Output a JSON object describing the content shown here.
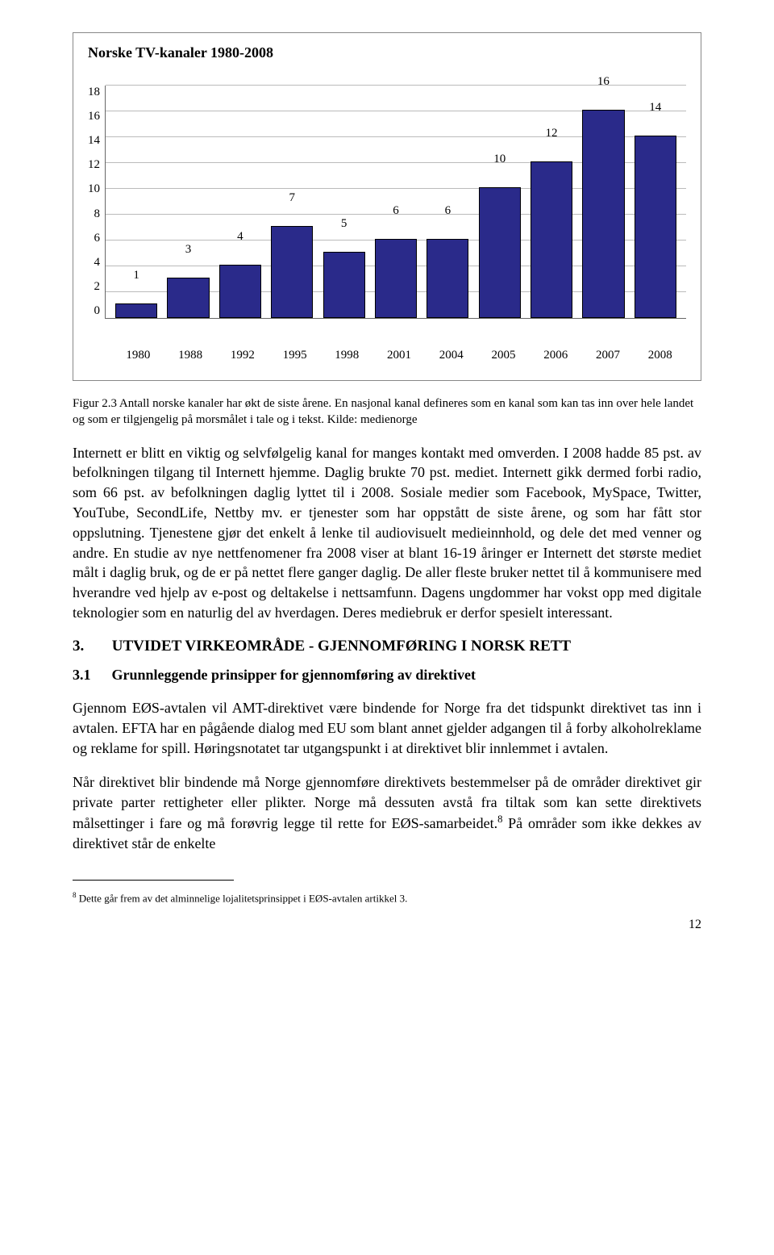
{
  "chart": {
    "type": "bar",
    "title": "Norske TV-kanaler 1980-2008",
    "categories": [
      "1980",
      "1988",
      "1992",
      "1995",
      "1998",
      "2001",
      "2004",
      "2005",
      "2006",
      "2007",
      "2008"
    ],
    "values": [
      1,
      3,
      4,
      7,
      5,
      6,
      6,
      10,
      12,
      16,
      14
    ],
    "bar_color": "#2a2a8a",
    "bar_border_color": "#000000",
    "ylim_max": 18,
    "ytick_step": 2,
    "gridline_color": "#bbbbbb",
    "background_color": "#ffffff",
    "title_fontsize": 18,
    "label_fontsize": 15,
    "bar_width_pct": 78,
    "yticks": [
      18,
      16,
      14,
      12,
      10,
      8,
      6,
      4,
      2,
      0
    ]
  },
  "caption": "Figur 2.3 Antall norske kanaler har økt de siste årene. En nasjonal kanal defineres som en kanal som kan tas inn over hele landet og som er tilgjengelig på morsmålet i tale og i tekst. Kilde: medienorge",
  "body1": "Internett er blitt en viktig og selvfølgelig kanal for manges kontakt med omverden. I 2008 hadde 85 pst. av befolkningen tilgang til Internett hjemme. Daglig brukte 70 pst. mediet. Internett gikk dermed forbi radio, som 66 pst. av befolkningen daglig lyttet til i 2008. Sosiale medier som Facebook, MySpace, Twitter, YouTube, SecondLife, Nettby mv. er tjenester som har oppstått de siste årene, og som har fått stor oppslutning. Tjenestene gjør det enkelt å lenke til audiovisuelt medieinnhold, og dele det med venner og andre. En studie av nye nettfenomener fra 2008 viser at blant 16-19 åringer er Internett det største mediet målt i daglig bruk, og de er på nettet flere ganger daglig. De aller fleste bruker nettet til å kommunisere med hverandre ved hjelp av e-post og deltakelse i nettsamfunn. Dagens ungdommer har vokst opp med digitale teknologier som en naturlig del av hverdagen. Deres mediebruk er derfor spesielt interessant.",
  "section": {
    "num": "3.",
    "title": "UTVIDET VIRKEOMRÅDE - GJENNOMFØRING I NORSK RETT"
  },
  "subsection": {
    "num": "3.1",
    "title": "Grunnleggende prinsipper for gjennomføring av direktivet"
  },
  "body2": "Gjennom EØS-avtalen vil AMT-direktivet være bindende for Norge fra det tidspunkt direktivet tas inn i avtalen. EFTA har en pågående dialog med EU som blant annet gjelder adgangen til å forby alkoholreklame og reklame for spill. Høringsnotatet tar utgangspunkt i at direktivet blir innlemmet i avtalen.",
  "body3_pre": "Når direktivet blir bindende må Norge gjennomføre direktivets bestemmelser på de områder direktivet gir private parter rettigheter eller plikter. Norge må dessuten avstå fra tiltak som kan sette direktivets målsettinger i fare og må forøvrig legge til rette for EØS-samarbeidet.",
  "body3_sup": "8",
  "body3_post": " På områder som ikke dekkes av direktivet står de enkelte",
  "footnote": {
    "num": "8",
    "text": " Dette går frem av det alminnelige lojalitetsprinsippet i EØS-avtalen artikkel 3."
  },
  "page_number": "12"
}
